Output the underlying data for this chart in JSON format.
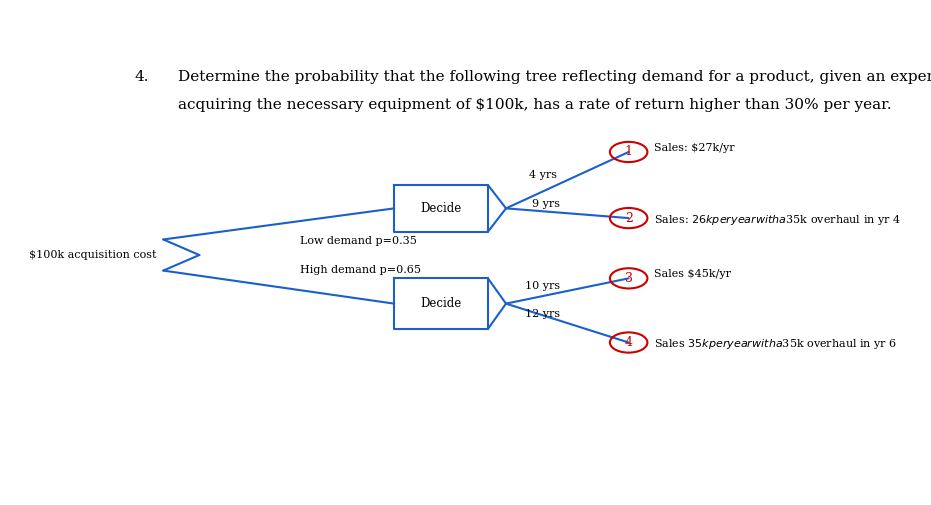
{
  "title_number": "4.",
  "title_line1": "Determine the probability that the following tree reflecting demand for a product, given an expense of",
  "title_line2": "acquiring the necessary equipment of $100k, has a rate of return higher than 30% per year.",
  "background_color": "#ffffff",
  "text_color": "#000000",
  "line_color": "#1a5fcc",
  "red_color": "#cc0000",
  "label_low_demand": "Low demand p=0.35",
  "label_high_demand": "High demand p=0.65",
  "label_decide1": "Decide",
  "label_decide2": "Decide",
  "label_acquisition": "$100k acquisition cost",
  "label_4yrs": "4 yrs",
  "label_9yrs": "9 yrs",
  "label_10yrs": "10 yrs",
  "label_12yrs": "12 yrs",
  "label_sales1": "Sales: $27k/yr",
  "label_sales2": "Sales: $26k per year with a $35k overhaul in yr 4",
  "label_sales3": "Sales $45k/yr",
  "label_sales4": "Sales $35k per year with a $35k overhaul in yr 6"
}
